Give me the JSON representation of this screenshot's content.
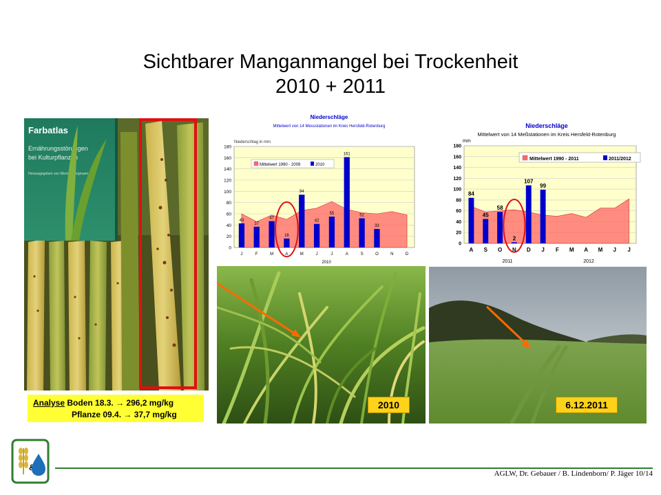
{
  "title": {
    "line1": "Sichtbarer Manganmangel bei Trockenheit",
    "line2": "2010 + 2011"
  },
  "book": {
    "title": "Farbatlas",
    "subtitle_line1": "Ernährungsstörungen",
    "subtitle_line2": "bei Kulturpflanzen",
    "editors": "Herausgegeben von Werner Bergmann"
  },
  "analysis": {
    "soil_label": "Analyse",
    "soil_text": "Boden  18.3.  →  296,2 mg/kg",
    "plant_text": "Pflanze 09.4.  →  37,7 mg/kg"
  },
  "photo_labels": {
    "field_2010": "2010",
    "field_2011": "6.12.2011"
  },
  "footer": {
    "credit": "AGLW, Dr. Gebauer / B. Lindenborn/ P. Jäger 10/14"
  },
  "colors": {
    "accent_green": "#2f7d2f",
    "bar_blue": "#0000cc",
    "area_red": "#ff6666",
    "plot_bg": "#ffffcc",
    "highlight_red": "#e01010",
    "label_yellow": "#ffd21a",
    "analysis_yellow": "#ffff33"
  },
  "chart_data": [
    {
      "type": "bar",
      "title": "Niederschläge",
      "subtitle": "Mittelwert von 14 Messstationen im Kreis Hersfeld-Rotenburg",
      "ylabel": "Niederschlag in mm",
      "xlabel": "2010",
      "categories": [
        "J",
        "F",
        "M",
        "A",
        "M",
        "J",
        "J",
        "A",
        "S",
        "O",
        "N",
        "D"
      ],
      "ylim": [
        0,
        180
      ],
      "yticks": [
        0,
        20,
        40,
        60,
        80,
        100,
        120,
        140,
        160,
        180
      ],
      "grid": true,
      "legend": "top-left",
      "highlight_category_index": 3,
      "series": [
        {
          "name": "Mittelwert 1990 - 2009",
          "kind": "area",
          "values": [
            60,
            46,
            58,
            50,
            66,
            70,
            82,
            68,
            62,
            60,
            64,
            58
          ]
        },
        {
          "name": "2010",
          "kind": "bar",
          "values": [
            43,
            37,
            47,
            16,
            94,
            42,
            55,
            161,
            52,
            33,
            null,
            null
          ]
        }
      ]
    },
    {
      "type": "bar",
      "title": "Niederschläge",
      "subtitle": "Mittelwert von 14 Meßstationen im Kreis Hersfeld-Rotenburg",
      "ylabel": "mm",
      "xlabel_left": "2011",
      "xlabel_right": "2012",
      "categories": [
        "A",
        "S",
        "O",
        "N",
        "D",
        "J",
        "F",
        "M",
        "A",
        "M",
        "J",
        "J"
      ],
      "ylim": [
        0,
        180
      ],
      "yticks": [
        0,
        20,
        40,
        60,
        80,
        100,
        120,
        140,
        160,
        180
      ],
      "grid": true,
      "legend": "top-right",
      "highlight_category_index": 3,
      "series": [
        {
          "name": "Mittelwert 1990 - 2011",
          "kind": "area",
          "values": [
            68,
            58,
            60,
            62,
            58,
            52,
            50,
            55,
            48,
            65,
            65,
            82
          ]
        },
        {
          "name": "2011/2012",
          "kind": "bar",
          "values": [
            84,
            45,
            58,
            2,
            107,
            99,
            null,
            null,
            null,
            null,
            null,
            null
          ]
        }
      ]
    }
  ]
}
